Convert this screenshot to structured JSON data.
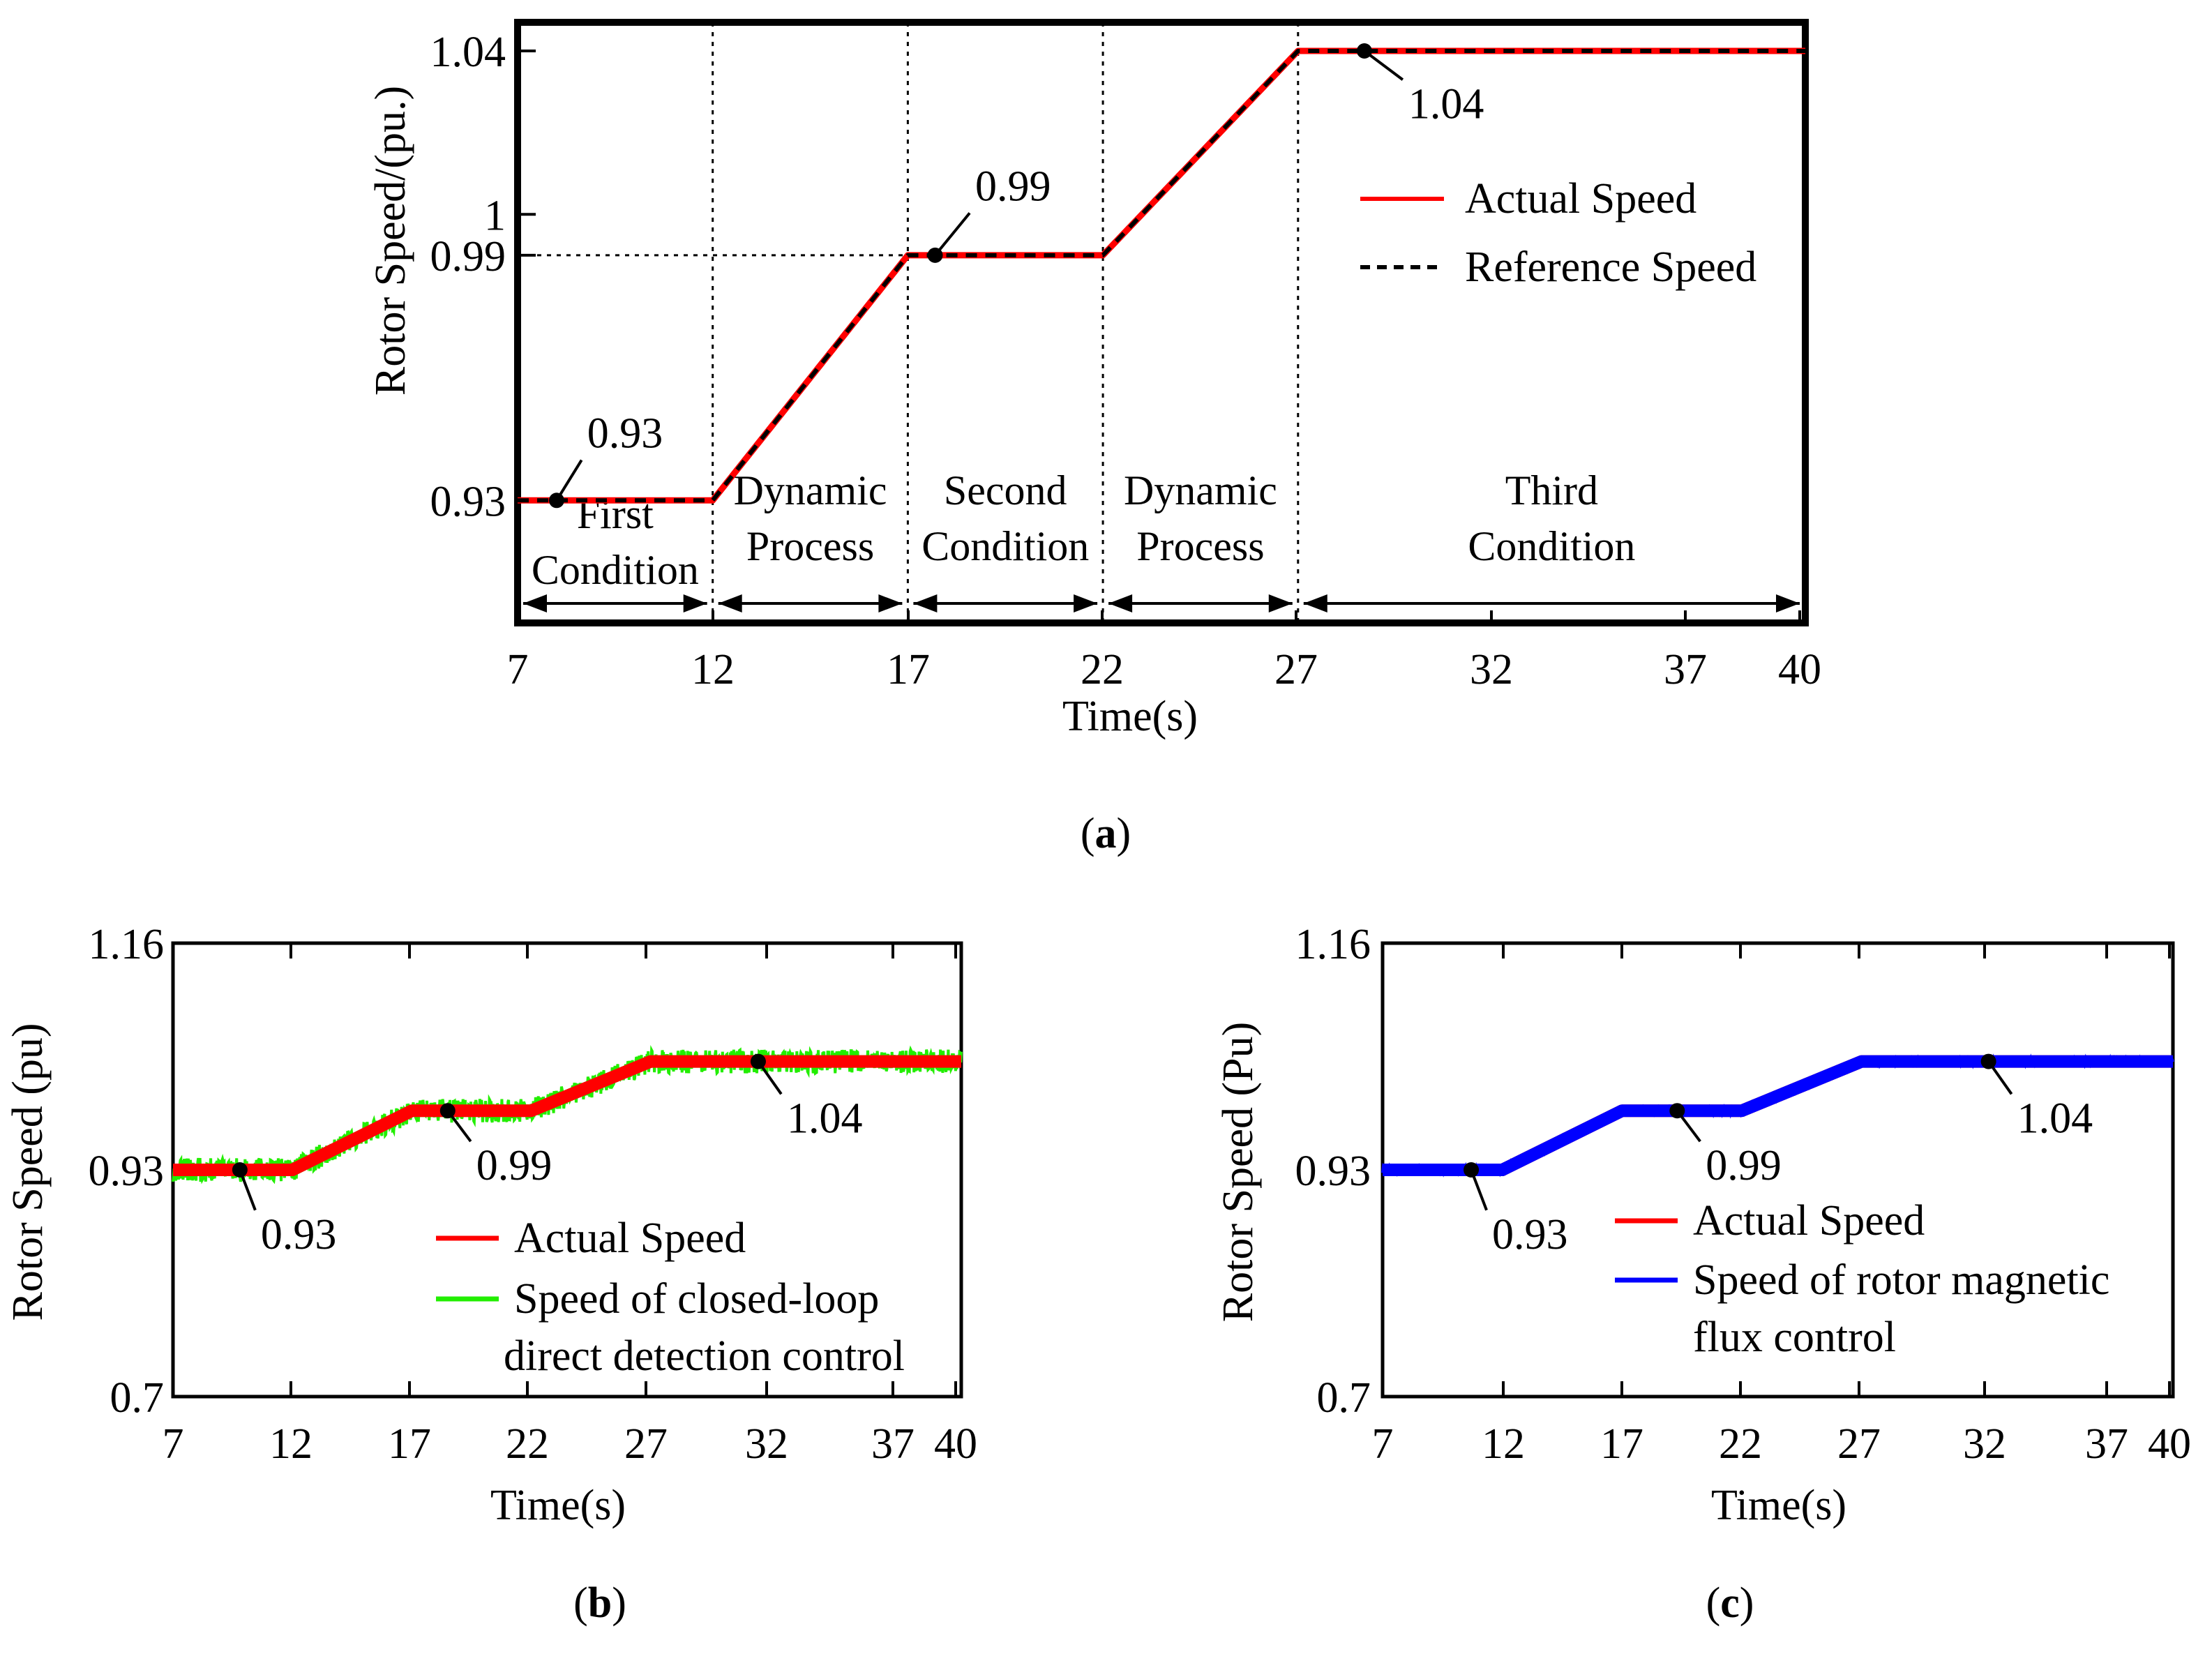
{
  "chart_data": [
    {
      "id": "a",
      "type": "line",
      "caption": "a",
      "xlabel": "Time(s)",
      "ylabel": "Rotor Speed/(pu.)",
      "xlim": [
        7,
        40
      ],
      "ylim": [
        0.9,
        1.047
      ],
      "xticks": [
        "7",
        "12",
        "17",
        "22",
        "27",
        "32",
        "37",
        "40"
      ],
      "yticks": [
        "0.93",
        "0.99",
        "1",
        "1.04"
      ],
      "ytick_values": [
        0.93,
        0.99,
        1.0,
        1.04
      ],
      "series": [
        {
          "name": "Actual Speed",
          "color": "#ff0000",
          "style": "solid",
          "x": [
            7,
            12,
            17,
            22,
            27,
            40
          ],
          "y": [
            0.93,
            0.93,
            0.99,
            0.99,
            1.04,
            1.04
          ]
        },
        {
          "name": "Reference Speed",
          "color": "#000000",
          "style": "dashed",
          "x": [
            7,
            12,
            17,
            22,
            27,
            40
          ],
          "y": [
            0.93,
            0.93,
            0.99,
            0.99,
            1.04,
            1.04
          ]
        }
      ],
      "legend": [
        "Actual Speed",
        "Reference Speed"
      ],
      "legend_position": "center-right",
      "annotations": [
        {
          "text": "0.93",
          "x": 8,
          "y": 0.93
        },
        {
          "text": "0.99",
          "x": 17.7,
          "y": 0.99
        },
        {
          "text": "1.04",
          "x": 28.7,
          "y": 1.04
        }
      ],
      "regions": [
        {
          "lines": [
            "First",
            "Condition"
          ],
          "from": 7,
          "to": 12
        },
        {
          "lines": [
            "Dynamic",
            "Process"
          ],
          "from": 12,
          "to": 17
        },
        {
          "lines": [
            "Second",
            "Condition"
          ],
          "from": 17,
          "to": 22
        },
        {
          "lines": [
            "Dynamic",
            "Process"
          ],
          "from": 22,
          "to": 27
        },
        {
          "lines": [
            "Third",
            "Condition"
          ],
          "from": 27,
          "to": 40
        }
      ]
    },
    {
      "id": "b",
      "type": "line",
      "caption": "b",
      "xlabel": "Time(s)",
      "ylabel": "Rotor Speed (pu)",
      "xlim": [
        7,
        40
      ],
      "ylim": [
        0.7,
        1.16
      ],
      "xticks": [
        "7",
        "12",
        "17",
        "22",
        "27",
        "32",
        "37",
        "40"
      ],
      "yticks": [
        "0.7",
        "0.93",
        "1.16"
      ],
      "ytick_values": [
        0.7,
        0.93,
        1.16
      ],
      "series": [
        {
          "name": "Speed of closed-loop direct detection control",
          "legend_lines": [
            "Speed of closed-loop",
            "direct detection control"
          ],
          "color": "#22ee00",
          "style": "noisy",
          "noise": 0.012,
          "x": [
            7,
            12,
            17,
            22,
            27,
            40
          ],
          "y": [
            0.93,
            0.93,
            0.99,
            0.99,
            1.04,
            1.04
          ]
        },
        {
          "name": "Actual Speed",
          "legend_lines": [
            "Actual Speed"
          ],
          "color": "#ff0000",
          "style": "solid-thick",
          "x": [
            7,
            12,
            17,
            22,
            27,
            40
          ],
          "y": [
            0.93,
            0.93,
            0.99,
            0.99,
            1.04,
            1.04
          ]
        }
      ],
      "legend": [
        "Actual Speed",
        "Speed of closed-loop direct detection control"
      ],
      "legend_position": "lower-right",
      "annotations": [
        {
          "text": "0.93",
          "x": 9.8,
          "y": 0.93
        },
        {
          "text": "0.99",
          "x": 18.5,
          "y": 0.99
        },
        {
          "text": "1.04",
          "x": 31.5,
          "y": 1.04
        }
      ]
    },
    {
      "id": "c",
      "type": "line",
      "caption": "c",
      "xlabel": "Time(s)",
      "ylabel": "Rotor Speed (Pu)",
      "xlim": [
        7,
        40
      ],
      "ylim": [
        0.7,
        1.16
      ],
      "xticks": [
        "7",
        "12",
        "17",
        "22",
        "27",
        "32",
        "37",
        "40"
      ],
      "yticks": [
        "0.7",
        "0.93",
        "1.16"
      ],
      "ytick_values": [
        0.7,
        0.93,
        1.16
      ],
      "series": [
        {
          "name": "Actual Speed",
          "legend_lines": [
            "Actual Speed"
          ],
          "color": "#ff0000",
          "style": "solid-thick",
          "x": [
            7,
            12,
            17,
            22,
            27,
            40
          ],
          "y": [
            0.93,
            0.93,
            0.99,
            0.99,
            1.04,
            1.04
          ]
        },
        {
          "name": "Speed of rotor magnetic flux control",
          "legend_lines": [
            "Speed of rotor magnetic",
            "flux control"
          ],
          "color": "#0000ff",
          "style": "noisy",
          "noise": 0.003,
          "x": [
            7,
            12,
            17,
            22,
            27,
            40
          ],
          "y": [
            0.93,
            0.93,
            0.99,
            0.99,
            1.04,
            1.04
          ]
        }
      ],
      "legend": [
        "Actual Speed",
        "Speed of rotor magnetic flux control"
      ],
      "legend_position": "lower-right",
      "annotations": [
        {
          "text": "0.93",
          "x": 10.7,
          "y": 0.93
        },
        {
          "text": "0.99",
          "x": 19.3,
          "y": 0.99
        },
        {
          "text": "1.04",
          "x": 32.3,
          "y": 1.04
        }
      ]
    }
  ]
}
